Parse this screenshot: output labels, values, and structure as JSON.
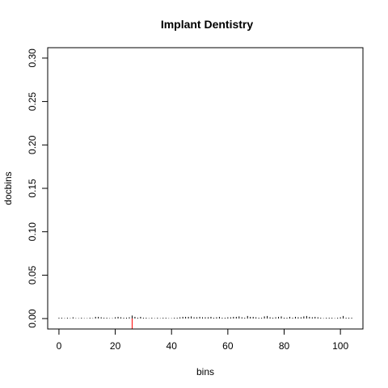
{
  "chart_data": {
    "type": "bar",
    "title": "Implant Dentistry",
    "xlabel": "bins",
    "ylabel": "docbins",
    "xlim": [
      -4,
      108
    ],
    "ylim": [
      -0.012,
      0.312
    ],
    "xticks": [
      0,
      20,
      40,
      60,
      80,
      100
    ],
    "xtick_labels": [
      "0",
      "20",
      "40",
      "60",
      "80",
      "100"
    ],
    "yticks": [
      0,
      0.05,
      0.1,
      0.15,
      0.2,
      0.25,
      0.3
    ],
    "ytick_labels": [
      "0.00",
      "0.05",
      "0.10",
      "0.15",
      "0.20",
      "0.25",
      "0.30"
    ],
    "grid": false,
    "highlight_bin": 26,
    "highlight_color": "#ff0000",
    "bar_color": "#000000",
    "x": [
      0,
      1,
      2,
      3,
      4,
      5,
      6,
      7,
      8,
      9,
      10,
      11,
      12,
      13,
      14,
      15,
      16,
      17,
      18,
      19,
      20,
      21,
      22,
      23,
      24,
      25,
      26,
      27,
      28,
      29,
      30,
      31,
      32,
      33,
      34,
      35,
      36,
      37,
      38,
      39,
      40,
      41,
      42,
      43,
      44,
      45,
      46,
      47,
      48,
      49,
      50,
      51,
      52,
      53,
      54,
      55,
      56,
      57,
      58,
      59,
      60,
      61,
      62,
      63,
      64,
      65,
      66,
      67,
      68,
      69,
      70,
      71,
      72,
      73,
      74,
      75,
      76,
      77,
      78,
      79,
      80,
      81,
      82,
      83,
      84,
      85,
      86,
      87,
      88,
      89,
      90,
      91,
      92,
      93,
      94,
      95,
      96,
      97,
      98,
      99,
      100,
      101,
      102,
      103,
      104
    ],
    "values": [
      0.001,
      0.001,
      0.0005,
      0.001,
      0.0005,
      0.0015,
      0.0005,
      0.0005,
      0.001,
      0.0005,
      0.0005,
      0.001,
      0.0005,
      0.002,
      0.002,
      0.0015,
      0.001,
      0.001,
      0.0005,
      0.0005,
      0.0015,
      0.002,
      0.0015,
      0.001,
      0.001,
      0.0015,
      0.0035,
      0.002,
      0.001,
      0.002,
      0.001,
      0.001,
      0.0005,
      0.001,
      0.0005,
      0.001,
      0.0005,
      0.001,
      0.001,
      0.0005,
      0.0005,
      0.001,
      0.001,
      0.0015,
      0.002,
      0.002,
      0.002,
      0.0025,
      0.0015,
      0.0015,
      0.002,
      0.0015,
      0.0015,
      0.0015,
      0.002,
      0.001,
      0.0015,
      0.002,
      0.001,
      0.001,
      0.0015,
      0.0015,
      0.002,
      0.002,
      0.0025,
      0.0015,
      0.001,
      0.003,
      0.002,
      0.002,
      0.0015,
      0.001,
      0.001,
      0.0025,
      0.003,
      0.0015,
      0.001,
      0.0015,
      0.002,
      0.0025,
      0.001,
      0.001,
      0.002,
      0.001,
      0.002,
      0.0015,
      0.0015,
      0.0025,
      0.003,
      0.002,
      0.0015,
      0.002,
      0.0015,
      0.001,
      0.0005,
      0.001,
      0.001,
      0.001,
      0.0005,
      0.001,
      0.0015,
      0.003,
      0.001,
      0.001,
      0.001
    ]
  }
}
